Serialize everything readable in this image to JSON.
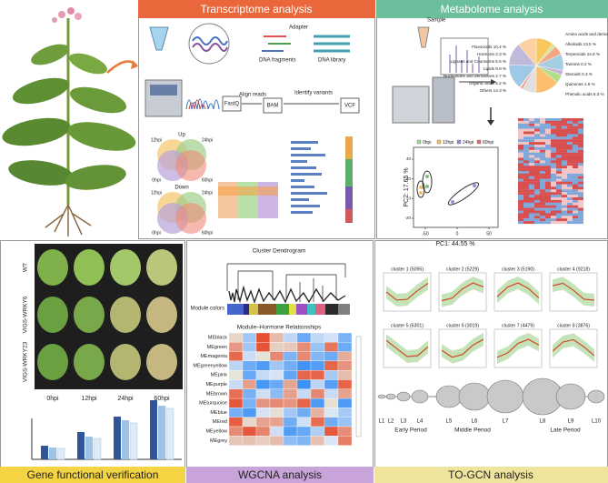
{
  "transcriptome": {
    "title": "Transcriptome analysis",
    "labels": {
      "adapter": "Adapter",
      "fragments": "DNA fragments",
      "library": "DNA library",
      "fastq": "FastQ",
      "align": "Align reads",
      "bam": "BAM",
      "variants": "Identify variants",
      "vcf": "VCF"
    },
    "venn_up": {
      "title": "Up",
      "sets": [
        "12hpi",
        "24hpi",
        "0hpi",
        "60hpi"
      ]
    },
    "venn_down": {
      "title": "Down",
      "sets": [
        "12hpi",
        "24hpi",
        "0hpi",
        "60hpi"
      ]
    }
  },
  "metabolome": {
    "title": "Metabolome analysis",
    "sample": "Sample",
    "pie": [
      {
        "label": "Flavonoids 10.4 %",
        "value": 10.4
      },
      {
        "label": "Hormone 2.3 %",
        "value": 2.3
      },
      {
        "label": "Lignans and Coumarins 5.5 %",
        "value": 5.5
      },
      {
        "label": "Lipids 9.8 %",
        "value": 9.8
      },
      {
        "label": "Nucleotides and derivatives 2.7 %",
        "value": 2.7
      },
      {
        "label": "Organic acids 5.2 %",
        "value": 5.2
      },
      {
        "label": "Others 14.3 %",
        "value": 14.3
      },
      {
        "label": "Phenolic acids 8.3 %",
        "value": 8.3
      },
      {
        "label": "Quinones 1.6 %",
        "value": 1.6
      },
      {
        "label": "Steroids 0.3 %",
        "value": 0.3
      },
      {
        "label": "Tannins 0.2 %",
        "value": 0.2
      },
      {
        "label": "Terpenoids 14.8 %",
        "value": 14.8
      },
      {
        "label": "Alkaloids 13.5 %",
        "value": 13.5
      },
      {
        "label": "Amino acids and derivatives 11.3 %",
        "value": 11.3
      }
    ],
    "pca": {
      "legend": [
        "0hpi",
        "12hpi",
        "24hpi",
        "60hpi"
      ],
      "xlabel": "PC1: 44.55 %",
      "ylabel": "PC2: 17.65 %",
      "xticks": [
        -50,
        0,
        50
      ],
      "yticks": [
        -20,
        0,
        20,
        40
      ]
    }
  },
  "gene": {
    "title": "Gene functional verification",
    "rows": [
      "WT",
      "VIGS-WRKY6",
      "VIGS-WRKY23"
    ],
    "columns": [
      "0hpi",
      "12hpi",
      "24hpi",
      "60hpi"
    ]
  },
  "wgcna": {
    "title": "WGCNA analysis",
    "dendrogram_title": "Cluster Dendrogram",
    "module_colors_label": "Module colors",
    "heatmap_title": "Module–Hormone Relationships",
    "modules": [
      "MEblack",
      "MEgreen",
      "MEmagenta",
      "MEgreenyellow",
      "MEpink",
      "MEpurple",
      "MEbrown",
      "MEturquoise",
      "MEblue",
      "MEred",
      "MEyellow",
      "MEgrey"
    ]
  },
  "togcn": {
    "title": "TO-GCN analysis",
    "clusters": [
      "cluster 1 (5095)",
      "cluster 2 (5229)",
      "cluster 3 (5190)",
      "cluster 4 (9218)",
      "cluster 5 (6301)",
      "cluster 6 (3019)",
      "cluster 7 (4479)",
      "cluster 8 (3876)"
    ],
    "levels": [
      "L1",
      "L2",
      "L3",
      "L4",
      "L5",
      "L6",
      "L7",
      "L8",
      "L9",
      "L10"
    ],
    "periods": [
      "Early Period",
      "Middle Period",
      "Late Period"
    ]
  }
}
